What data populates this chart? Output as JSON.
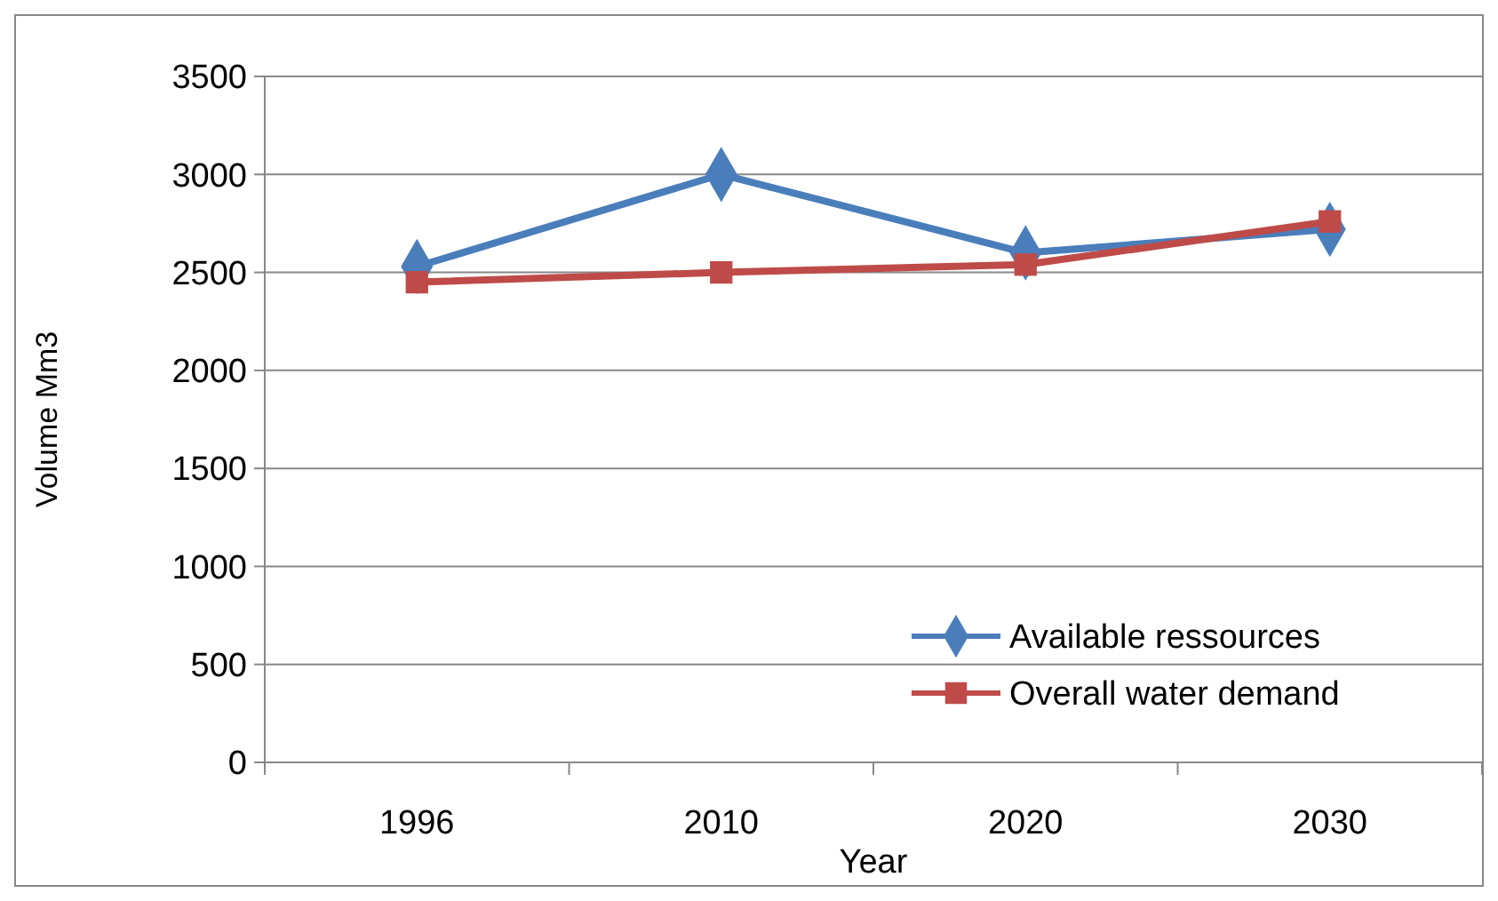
{
  "chart_data": {
    "type": "line",
    "xlabel": "Year",
    "ylabel": "Volume Mm3",
    "categories": [
      "1996",
      "2010",
      "2020",
      "2030"
    ],
    "series": [
      {
        "name": "Available ressources",
        "color": "#4a7ebb",
        "marker": "diamond",
        "values": [
          2530,
          3000,
          2600,
          2720
        ]
      },
      {
        "name": "Overall water demand",
        "color": "#be4b48",
        "marker": "square",
        "values": [
          2450,
          2500,
          2540,
          2760
        ]
      }
    ],
    "ylim": [
      0,
      3500
    ],
    "yticks": [
      0,
      500,
      1000,
      1500,
      2000,
      2500,
      3000,
      3500
    ],
    "grid": "y",
    "legend": "bottom right",
    "line_style": "solid"
  }
}
